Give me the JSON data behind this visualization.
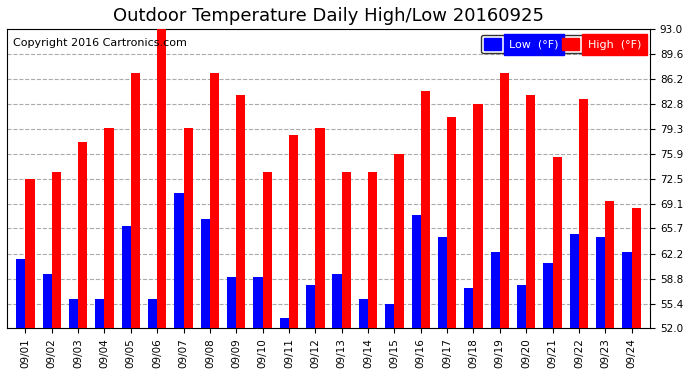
{
  "title": "Outdoor Temperature Daily High/Low 20160925",
  "copyright": "Copyright 2016 Cartronics.com",
  "dates": [
    "09/01",
    "09/02",
    "09/03",
    "09/04",
    "09/05",
    "09/06",
    "09/07",
    "09/08",
    "09/09",
    "09/10",
    "09/11",
    "09/12",
    "09/13",
    "09/14",
    "09/15",
    "09/16",
    "09/17",
    "09/18",
    "09/19",
    "09/20",
    "09/21",
    "09/22",
    "09/23",
    "09/24"
  ],
  "highs": [
    72.5,
    73.5,
    77.5,
    79.5,
    87.0,
    93.0,
    79.5,
    87.0,
    84.0,
    73.5,
    78.5,
    79.5,
    73.5,
    73.5,
    75.9,
    84.5,
    81.0,
    82.8,
    87.0,
    84.0,
    75.5,
    83.5,
    69.5,
    68.5
  ],
  "lows": [
    61.5,
    59.5,
    56.0,
    56.0,
    66.0,
    56.0,
    70.5,
    67.0,
    59.0,
    59.0,
    53.5,
    58.0,
    59.5,
    56.0,
    55.4,
    67.5,
    64.5,
    57.5,
    62.5,
    58.0,
    61.0,
    65.0,
    64.5,
    62.5
  ],
  "ylim": [
    52.0,
    93.0
  ],
  "yticks": [
    52.0,
    55.4,
    58.8,
    62.2,
    65.7,
    69.1,
    72.5,
    75.9,
    79.3,
    82.8,
    86.2,
    89.6,
    93.0
  ],
  "bar_width": 0.35,
  "high_color": "#FF0000",
  "low_color": "#0000FF",
  "bg_color": "#FFFFFF",
  "grid_color": "#AAAAAA",
  "title_fontsize": 13,
  "copyright_fontsize": 8,
  "tick_fontsize": 7.5
}
